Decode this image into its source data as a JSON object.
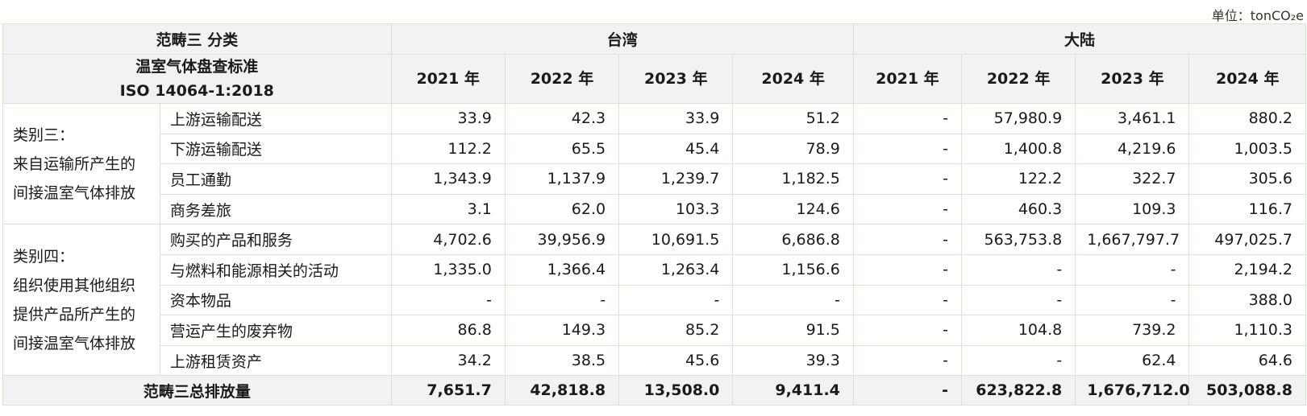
{
  "unit_label": "单位：tonCO₂e",
  "header": {
    "category_title": "范畴三 分类",
    "region_taiwan": "台湾",
    "region_mainland": "大陆",
    "standard_line1": "温室气体盘查标准",
    "standard_line2": "ISO 14064-1:2018",
    "years": [
      "2021 年",
      "2022 年",
      "2023 年",
      "2024 年",
      "2021 年",
      "2022 年",
      "2023 年",
      "2024 年"
    ]
  },
  "groups": [
    {
      "label_lines": [
        "类别三：",
        "来自运输所产生的",
        "间接温室气体排放"
      ],
      "rows": [
        {
          "name": "上游运输配送",
          "values": [
            "33.9",
            "42.3",
            "33.9",
            "51.2",
            "-",
            "57,980.9",
            "3,461.1",
            "880.2"
          ]
        },
        {
          "name": "下游运输配送",
          "values": [
            "112.2",
            "65.5",
            "45.4",
            "78.9",
            "-",
            "1,400.8",
            "4,219.6",
            "1,003.5"
          ]
        },
        {
          "name": "员工通勤",
          "values": [
            "1,343.9",
            "1,137.9",
            "1,239.7",
            "1,182.5",
            "-",
            "122.2",
            "322.7",
            "305.6"
          ]
        },
        {
          "name": "商务差旅",
          "values": [
            "3.1",
            "62.0",
            "103.3",
            "124.6",
            "-",
            "460.3",
            "109.3",
            "116.7"
          ]
        }
      ]
    },
    {
      "label_lines": [
        "类别四：",
        "组织使用其他组织",
        "提供产品所产生的",
        "间接温室气体排放"
      ],
      "rows": [
        {
          "name": "购买的产品和服务",
          "values": [
            "4,702.6",
            "39,956.9",
            "10,691.5",
            "6,686.8",
            "-",
            "563,753.8",
            "1,667,797.7",
            "497,025.7"
          ]
        },
        {
          "name": "与燃料和能源相关的活动",
          "values": [
            "1,335.0",
            "1,366.4",
            "1,263.4",
            "1,156.6",
            "-",
            "-",
            "-",
            "2,194.2"
          ]
        },
        {
          "name": "资本物品",
          "values": [
            "-",
            "-",
            "-",
            "-",
            "-",
            "-",
            "-",
            "388.0"
          ]
        },
        {
          "name": "营运产生的废弃物",
          "values": [
            "86.8",
            "149.3",
            "85.2",
            "91.5",
            "-",
            "104.8",
            "739.2",
            "1,110.3"
          ]
        },
        {
          "name": "上游租赁资产",
          "values": [
            "34.2",
            "38.5",
            "45.6",
            "39.3",
            "-",
            "-",
            "62.4",
            "64.6"
          ]
        }
      ]
    }
  ],
  "total": {
    "label": "范畴三总排放量",
    "values": [
      "7,651.7",
      "42,818.8",
      "13,508.0",
      "9,411.4",
      "-",
      "623,822.8",
      "1,676,712.0",
      "503,088.8"
    ]
  },
  "colors": {
    "border": "#d7e7cd",
    "header_bg": "#f2f2f2"
  }
}
